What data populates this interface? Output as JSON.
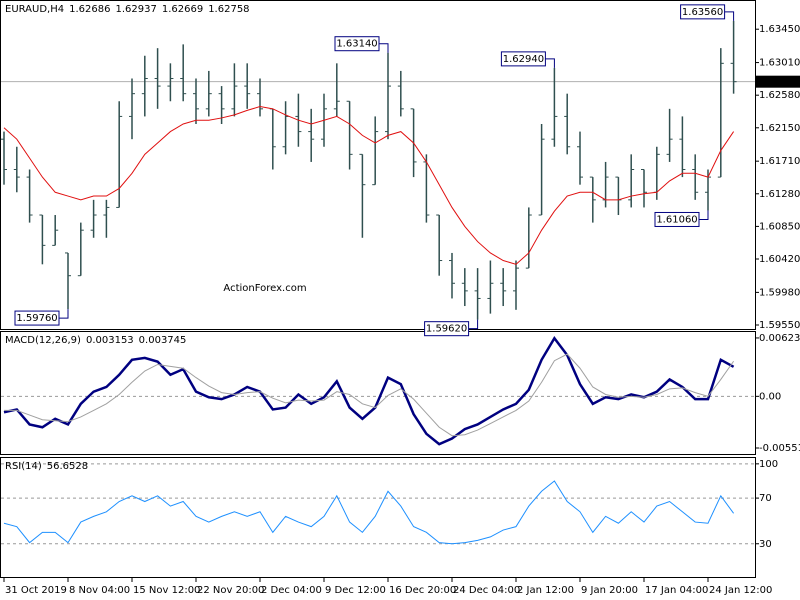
{
  "chart_data": [
    {
      "type": "ohlc",
      "title": "EURAUD,H4",
      "header_values": [
        1.62686,
        1.62937,
        1.62669,
        1.62758
      ],
      "watermark": "ActionForex.com",
      "color": "#2f4f4f",
      "categories": [
        "31 Oct 2019",
        null,
        null,
        null,
        null,
        "8 Nov 04:00",
        null,
        null,
        null,
        null,
        "15 Nov 12:00",
        null,
        null,
        null,
        null,
        "22 Nov 20:00",
        null,
        null,
        null,
        null,
        "2 Dec 04:00",
        null,
        null,
        null,
        null,
        "9 Dec 12:00",
        null,
        null,
        null,
        null,
        "16 Dec 20:00",
        null,
        null,
        null,
        null,
        "24 Dec 04:00",
        null,
        null,
        null,
        null,
        "2 Jan 12:00",
        null,
        null,
        null,
        null,
        "9 Jan 20:00",
        null,
        null,
        null,
        null,
        "17 Jan 04:00",
        null,
        null,
        null,
        null,
        "24 Jan 12:00",
        null,
        null
      ],
      "open": [
        1.62,
        1.616,
        1.615,
        1.61,
        1.606,
        1.605,
        1.602,
        1.608,
        1.61,
        1.611,
        1.623,
        1.626,
        1.628,
        1.627,
        1.628,
        1.626,
        1.624,
        1.626,
        1.624,
        1.627,
        1.626,
        1.624,
        1.619,
        1.623,
        1.621,
        1.62,
        1.624,
        1.625,
        1.618,
        1.614,
        1.621,
        1.627,
        1.624,
        1.617,
        1.61,
        1.604,
        1.601,
        1.6,
        1.599,
        1.601,
        1.6,
        1.603,
        1.61,
        1.62,
        1.623,
        1.619,
        1.615,
        1.612,
        1.615,
        1.612,
        1.616,
        1.613,
        1.618,
        1.62,
        1.616,
        1.613,
        1.615,
        1.63
      ],
      "high": [
        1.621,
        1.619,
        1.616,
        1.61,
        1.61,
        1.605,
        1.609,
        1.612,
        1.612,
        1.625,
        1.628,
        1.631,
        1.632,
        1.63,
        1.6325,
        1.628,
        1.629,
        1.627,
        1.63,
        1.63,
        1.628,
        1.624,
        1.625,
        1.626,
        1.624,
        1.626,
        1.63,
        1.625,
        1.618,
        1.623,
        1.6314,
        1.629,
        1.624,
        1.618,
        1.61,
        1.605,
        1.603,
        1.603,
        1.604,
        1.603,
        1.604,
        1.611,
        1.622,
        1.6294,
        1.626,
        1.621,
        1.615,
        1.617,
        1.615,
        1.618,
        1.616,
        1.619,
        1.624,
        1.623,
        1.618,
        1.616,
        1.632,
        1.6356
      ],
      "low": [
        1.614,
        1.613,
        1.609,
        1.6035,
        1.606,
        1.5976,
        1.602,
        1.607,
        1.607,
        1.611,
        1.62,
        1.623,
        1.624,
        1.625,
        1.625,
        1.622,
        1.623,
        1.622,
        1.623,
        1.624,
        1.623,
        1.616,
        1.618,
        1.619,
        1.617,
        1.619,
        1.623,
        1.616,
        1.607,
        1.614,
        1.62,
        1.623,
        1.615,
        1.609,
        1.602,
        1.599,
        1.598,
        1.5962,
        1.597,
        1.598,
        1.5975,
        1.603,
        1.61,
        1.619,
        1.618,
        1.614,
        1.609,
        1.611,
        1.61,
        1.611,
        1.611,
        1.612,
        1.617,
        1.615,
        1.612,
        1.6106,
        1.615,
        1.626
      ],
      "close": [
        1.616,
        1.615,
        1.61,
        1.606,
        1.608,
        1.602,
        1.608,
        1.61,
        1.611,
        1.623,
        1.626,
        1.628,
        1.627,
        1.628,
        1.626,
        1.624,
        1.626,
        1.624,
        1.627,
        1.626,
        1.624,
        1.619,
        1.623,
        1.621,
        1.62,
        1.624,
        1.625,
        1.618,
        1.614,
        1.621,
        1.627,
        1.624,
        1.617,
        1.61,
        1.604,
        1.601,
        1.6,
        1.599,
        1.601,
        1.6,
        1.603,
        1.61,
        1.62,
        1.623,
        1.619,
        1.615,
        1.612,
        1.615,
        1.612,
        1.616,
        1.613,
        1.618,
        1.62,
        1.616,
        1.613,
        1.615,
        1.63,
        1.62758
      ],
      "ma": {
        "color": "#e01010",
        "values": [
          1.6215,
          1.62,
          1.6175,
          1.615,
          1.613,
          1.6125,
          1.612,
          1.6125,
          1.6125,
          1.6135,
          1.6155,
          1.618,
          1.6195,
          1.621,
          1.622,
          1.6225,
          1.6225,
          1.6228,
          1.6232,
          1.6238,
          1.6243,
          1.624,
          1.6232,
          1.6225,
          1.622,
          1.6225,
          1.623,
          1.622,
          1.6205,
          1.6195,
          1.6205,
          1.621,
          1.6195,
          1.617,
          1.614,
          1.611,
          1.6085,
          1.6065,
          1.605,
          1.604,
          1.6035,
          1.605,
          1.608,
          1.6105,
          1.6125,
          1.613,
          1.613,
          1.612,
          1.612,
          1.6125,
          1.6128,
          1.613,
          1.6145,
          1.6155,
          1.6155,
          1.615,
          1.6185,
          1.621
        ]
      },
      "current_price": 1.62758,
      "annotations": [
        {
          "value": 1.5976,
          "label": "1.59760"
        },
        {
          "value": 1.6314,
          "label": "1.63140"
        },
        {
          "value": 1.5962,
          "label": "1.59620"
        },
        {
          "value": 1.6294,
          "label": "1.62940"
        },
        {
          "value": 1.6106,
          "label": "1.61060"
        },
        {
          "value": 1.6356,
          "label": "1.63560"
        }
      ],
      "ylim": [
        1.59484,
        1.63835
      ],
      "yticks": [
        {
          "value": 1.6345,
          "label": "1.63450"
        },
        {
          "value": 1.6301,
          "label": "1.63010"
        },
        {
          "value": 1.6258,
          "label": "1.62580"
        },
        {
          "value": 1.6215,
          "label": "1.62150"
        },
        {
          "value": 1.6171,
          "label": "1.61710"
        },
        {
          "value": 1.6128,
          "label": "1.61280"
        },
        {
          "value": 1.6085,
          "label": "1.60850"
        },
        {
          "value": 1.6042,
          "label": "1.60420"
        },
        {
          "value": 1.5998,
          "label": "1.59980"
        },
        {
          "value": 1.5955,
          "label": "1.59550"
        }
      ]
    },
    {
      "type": "macd",
      "title": "MACD(12,26,9)",
      "header_values": [
        0.003153,
        0.003745
      ],
      "series": [
        {
          "color": "#000080",
          "values": [
            -0.0017,
            -0.0014,
            -0.003,
            -0.0033,
            -0.0024,
            -0.003,
            -0.0008,
            0.0005,
            0.001,
            0.0023,
            0.0039,
            0.0041,
            0.0037,
            0.0023,
            0.0029,
            0.0005,
            -0.0001,
            -0.0003,
            0.0002,
            0.001,
            0.0005,
            -0.0014,
            -0.0012,
            0.0002,
            -0.0008,
            -0.0001,
            0.0016,
            -0.0012,
            -0.0024,
            -0.0012,
            0.002,
            0.0013,
            -0.0019,
            -0.004,
            -0.0051,
            -0.0045,
            -0.0035,
            -0.003,
            -0.0022,
            -0.0014,
            -0.0008,
            0.0007,
            0.0039,
            0.0062,
            0.0044,
            0.0013,
            -0.0008,
            -0.0001,
            -0.0003,
            0.0002,
            -0.0001,
            0.0005,
            0.0018,
            0.001,
            -0.0003,
            -0.0003,
            0.0039,
            0.003153
          ]
        },
        {
          "color": "#a0a0a0",
          "values": [
            -0.0015,
            -0.0015,
            -0.002,
            -0.0025,
            -0.0026,
            -0.0027,
            -0.0022,
            -0.0015,
            -0.0008,
            0.0002,
            0.0015,
            0.0027,
            0.0034,
            0.0032,
            0.003,
            0.002,
            0.0011,
            0.0004,
            0.0002,
            0.0004,
            0.0005,
            -0.0002,
            -0.0007,
            -0.0004,
            -0.0005,
            -0.0004,
            0.0005,
            0.0002,
            -0.0008,
            -0.0012,
            0.0001,
            0.0008,
            -0.0003,
            -0.0018,
            -0.0033,
            -0.0042,
            -0.0041,
            -0.0036,
            -0.0029,
            -0.0022,
            -0.0015,
            -0.0005,
            0.0015,
            0.0038,
            0.0045,
            0.003,
            0.001,
            0.0002,
            -0.0001,
            0,
            -0.0001,
            0.0002,
            0.0008,
            0.0009,
            0.0004,
            0,
            0.0018,
            0.003745
          ]
        }
      ],
      "ylim": [
        -0.00626,
        0.006973
      ],
      "yticks": [
        0.006231,
        {
          "value": 0,
          "label": "0.00"
        },
        -0.005513
      ]
    },
    {
      "type": "line",
      "title": "RSI(14)",
      "header_values": [
        56.6528
      ],
      "color": "#1e90ff",
      "grid": true,
      "values": [
        48,
        45,
        31,
        40,
        40,
        31,
        49,
        54,
        58,
        67,
        72,
        67,
        72,
        63,
        67,
        54,
        49,
        54,
        58,
        54,
        58,
        40,
        54,
        49,
        45,
        54,
        72,
        49,
        40,
        54,
        76,
        63,
        45,
        40,
        31,
        30,
        31,
        33,
        36,
        42,
        45,
        63,
        76,
        85,
        67,
        58,
        40,
        54,
        48,
        58,
        49,
        63,
        67,
        58,
        49,
        48,
        72,
        56.6528
      ],
      "ylim": [
        0,
        106
      ],
      "yticks": [
        100,
        70,
        30
      ]
    }
  ]
}
